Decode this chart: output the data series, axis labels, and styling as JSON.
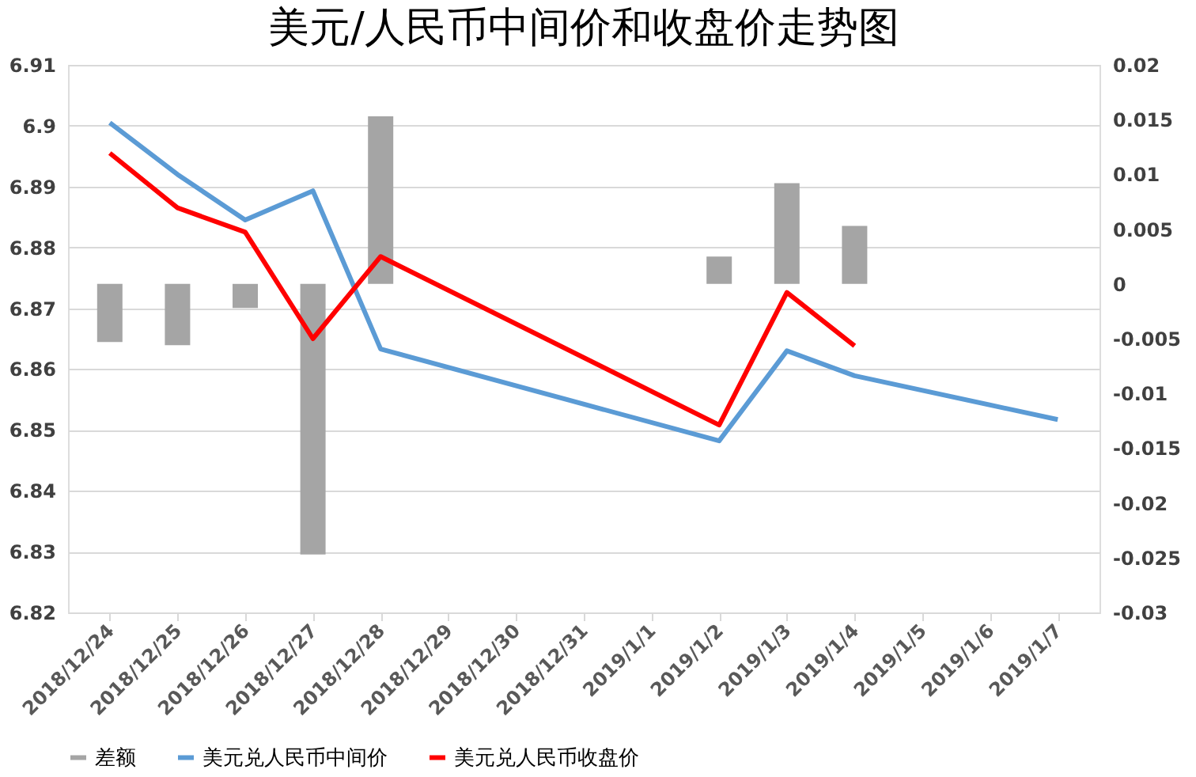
{
  "chart_data": {
    "type": "line",
    "title": "美元/人民币中间价和收盘价走势图",
    "categories": [
      "2018/12/24",
      "2018/12/25",
      "2018/12/26",
      "2018/12/27",
      "2018/12/28",
      "2018/12/29",
      "2018/12/30",
      "2018/12/31",
      "2019/1/1",
      "2019/1/2",
      "2019/1/3",
      "2019/1/4",
      "2019/1/5",
      "2019/1/6",
      "2019/1/7"
    ],
    "series": [
      {
        "name": "差额",
        "type": "bar",
        "axis": "y2",
        "color": "#a5a5a5",
        "values": [
          -0.0053,
          -0.0056,
          -0.0022,
          -0.0247,
          0.0153,
          null,
          null,
          null,
          null,
          0.0025,
          0.0092,
          0.0053,
          null,
          null,
          null
        ]
      },
      {
        "name": "美元兑人民币中间价",
        "color": "#5b9bd5",
        "values": [
          6.9005,
          6.892,
          6.8845,
          6.8893,
          6.8633,
          null,
          null,
          null,
          null,
          6.8482,
          6.863,
          6.8589,
          null,
          null,
          6.8517
        ]
      },
      {
        "name": "美元兑人民币收盘价",
        "color": "#ff0000",
        "values": [
          6.8955,
          6.8865,
          6.8825,
          6.865,
          6.8785,
          null,
          null,
          null,
          null,
          6.8508,
          6.8726,
          6.8638,
          null,
          null,
          null
        ]
      }
    ],
    "ylim": [
      6.82,
      6.91
    ],
    "yticks": [
      6.82,
      6.83,
      6.84,
      6.85,
      6.86,
      6.87,
      6.88,
      6.89,
      6.9,
      6.91
    ],
    "y2lim": [
      -0.03,
      0.02
    ],
    "y2ticks": [
      -0.03,
      -0.025,
      -0.02,
      -0.015,
      -0.01,
      -0.005,
      0,
      0.005,
      0.01,
      0.015,
      0.02
    ],
    "grid": "y",
    "legend": "bottom"
  }
}
